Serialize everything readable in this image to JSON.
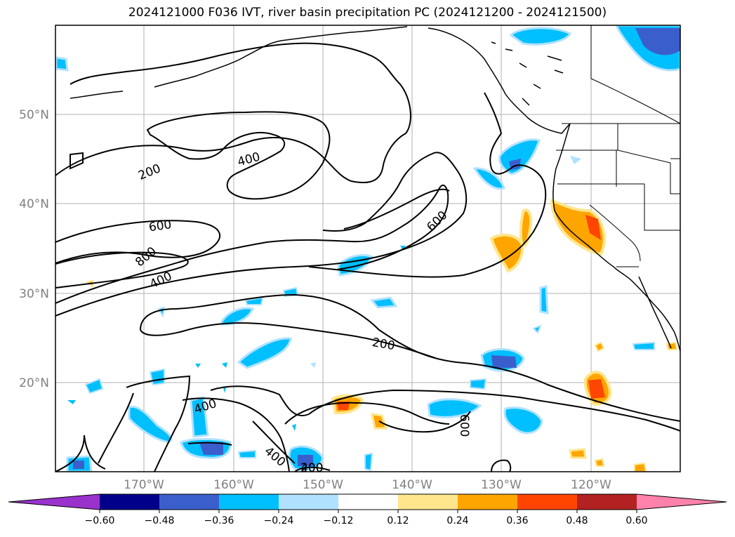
{
  "title": "2024121000 F036 IVT, river basin precipitation PC (2024121200 - 2024121500)",
  "map": {
    "lon_ticks": [
      "170°W",
      "160°W",
      "150°W",
      "140°W",
      "130°W",
      "120°W"
    ],
    "lat_ticks": [
      "50°N",
      "40°N",
      "30°N",
      "20°N"
    ],
    "contour_labels": [
      "200",
      "400",
      "600",
      "800",
      "400",
      "200",
      "600",
      "200",
      "400",
      "400",
      "400",
      "600"
    ]
  },
  "colorbar": {
    "ticks": [
      "−0.60",
      "−0.48",
      "−0.36",
      "−0.24",
      "−0.12",
      "0.12",
      "0.24",
      "0.36",
      "0.48",
      "0.60"
    ],
    "colors": [
      "#9932cc",
      "#00008b",
      "#3a5fcd",
      "#00bfff",
      "#b0e2ff",
      "#ffffff",
      "#ffe68c",
      "#ffa500",
      "#ff4500",
      "#b22222",
      "#ff82ab"
    ]
  }
}
